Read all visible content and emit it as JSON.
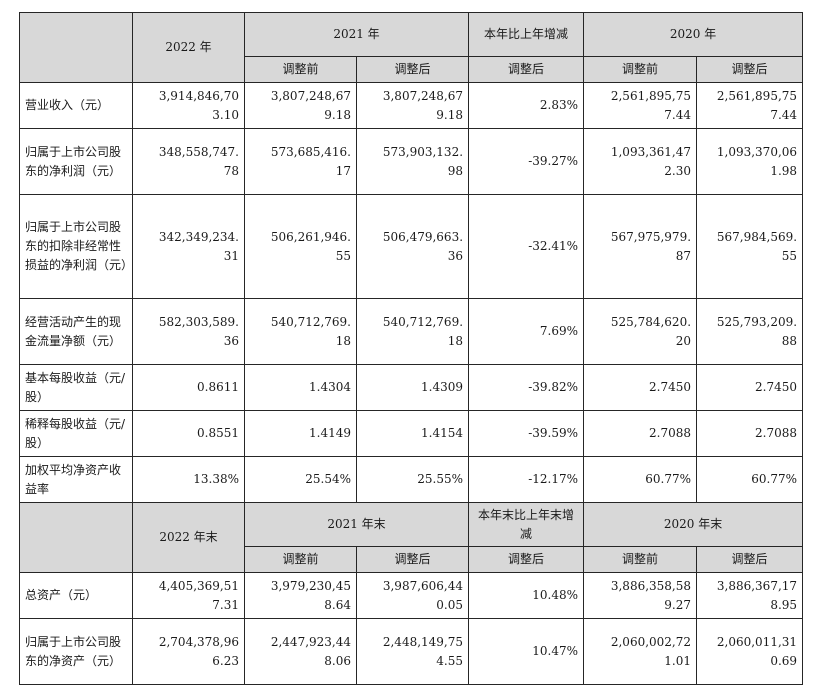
{
  "section1": {
    "header": {
      "year_2022": "2022 年",
      "year_2021": "2021 年",
      "change": "本年比上年增减",
      "year_2020": "2020 年",
      "before": "调整前",
      "after": "调整后"
    },
    "rows": [
      {
        "label": "营业收入（元）",
        "v2022": [
          "3,914,846,70",
          "3.10"
        ],
        "v2021b": [
          "3,807,248,67",
          "9.18"
        ],
        "v2021a": [
          "3,807,248,67",
          "9.18"
        ],
        "chg": "2.83%",
        "v2020b": [
          "2,561,895,75",
          "7.44"
        ],
        "v2020a": [
          "2,561,895,75",
          "7.44"
        ]
      },
      {
        "label": "归属于上市公司股东的净利润（元）",
        "v2022": [
          "348,558,747.",
          "78"
        ],
        "v2021b": [
          "573,685,416.",
          "17"
        ],
        "v2021a": [
          "573,903,132.",
          "98"
        ],
        "chg": "-39.27%",
        "v2020b": [
          "1,093,361,47",
          "2.30"
        ],
        "v2020a": [
          "1,093,370,06",
          "1.98"
        ]
      },
      {
        "label": "归属于上市公司股东的扣除非经常性损益的净利润（元）",
        "v2022": [
          "342,349,234.",
          "31"
        ],
        "v2021b": [
          "506,261,946.",
          "55"
        ],
        "v2021a": [
          "506,479,663.",
          "36"
        ],
        "chg": "-32.41%",
        "v2020b": [
          "567,975,979.",
          "87"
        ],
        "v2020a": [
          "567,984,569.",
          "55"
        ]
      },
      {
        "label": "经营活动产生的现金流量净额（元）",
        "v2022": [
          "582,303,589.",
          "36"
        ],
        "v2021b": [
          "540,712,769.",
          "18"
        ],
        "v2021a": [
          "540,712,769.",
          "18"
        ],
        "chg": "7.69%",
        "v2020b": [
          "525,784,620.",
          "20"
        ],
        "v2020a": [
          "525,793,209.",
          "88"
        ]
      },
      {
        "label": "基本每股收益（元/股）",
        "v2022": [
          "0.8611"
        ],
        "v2021b": [
          "1.4304"
        ],
        "v2021a": [
          "1.4309"
        ],
        "chg": "-39.82%",
        "v2020b": [
          "2.7450"
        ],
        "v2020a": [
          "2.7450"
        ]
      },
      {
        "label": "稀释每股收益（元/股）",
        "v2022": [
          "0.8551"
        ],
        "v2021b": [
          "1.4149"
        ],
        "v2021a": [
          "1.4154"
        ],
        "chg": "-39.59%",
        "v2020b": [
          "2.7088"
        ],
        "v2020a": [
          "2.7088"
        ]
      },
      {
        "label": "加权平均净资产收益率",
        "v2022": [
          "13.38%"
        ],
        "v2021b": [
          "25.54%"
        ],
        "v2021a": [
          "25.55%"
        ],
        "chg": "-12.17%",
        "v2020b": [
          "60.77%"
        ],
        "v2020a": [
          "60.77%"
        ]
      }
    ]
  },
  "section2": {
    "header": {
      "year_2022": "2022 年末",
      "year_2021": "2021 年末",
      "change": "本年末比上年末增减",
      "year_2020": "2020 年末",
      "before": "调整前",
      "after": "调整后"
    },
    "rows": [
      {
        "label": "总资产（元）",
        "v2022": [
          "4,405,369,51",
          "7.31"
        ],
        "v2021b": [
          "3,979,230,45",
          "8.64"
        ],
        "v2021a": [
          "3,987,606,44",
          "0.05"
        ],
        "chg": "10.48%",
        "v2020b": [
          "3,886,358,58",
          "9.27"
        ],
        "v2020a": [
          "3,886,367,17",
          "8.95"
        ]
      },
      {
        "label": "归属于上市公司股东的净资产（元）",
        "v2022": [
          "2,704,378,96",
          "6.23"
        ],
        "v2021b": [
          "2,447,923,44",
          "8.06"
        ],
        "v2021a": [
          "2,448,149,75",
          "4.55"
        ],
        "chg": "10.47%",
        "v2020b": [
          "2,060,002,72",
          "1.01"
        ],
        "v2020a": [
          "2,060,011,31",
          "0.69"
        ]
      }
    ]
  }
}
